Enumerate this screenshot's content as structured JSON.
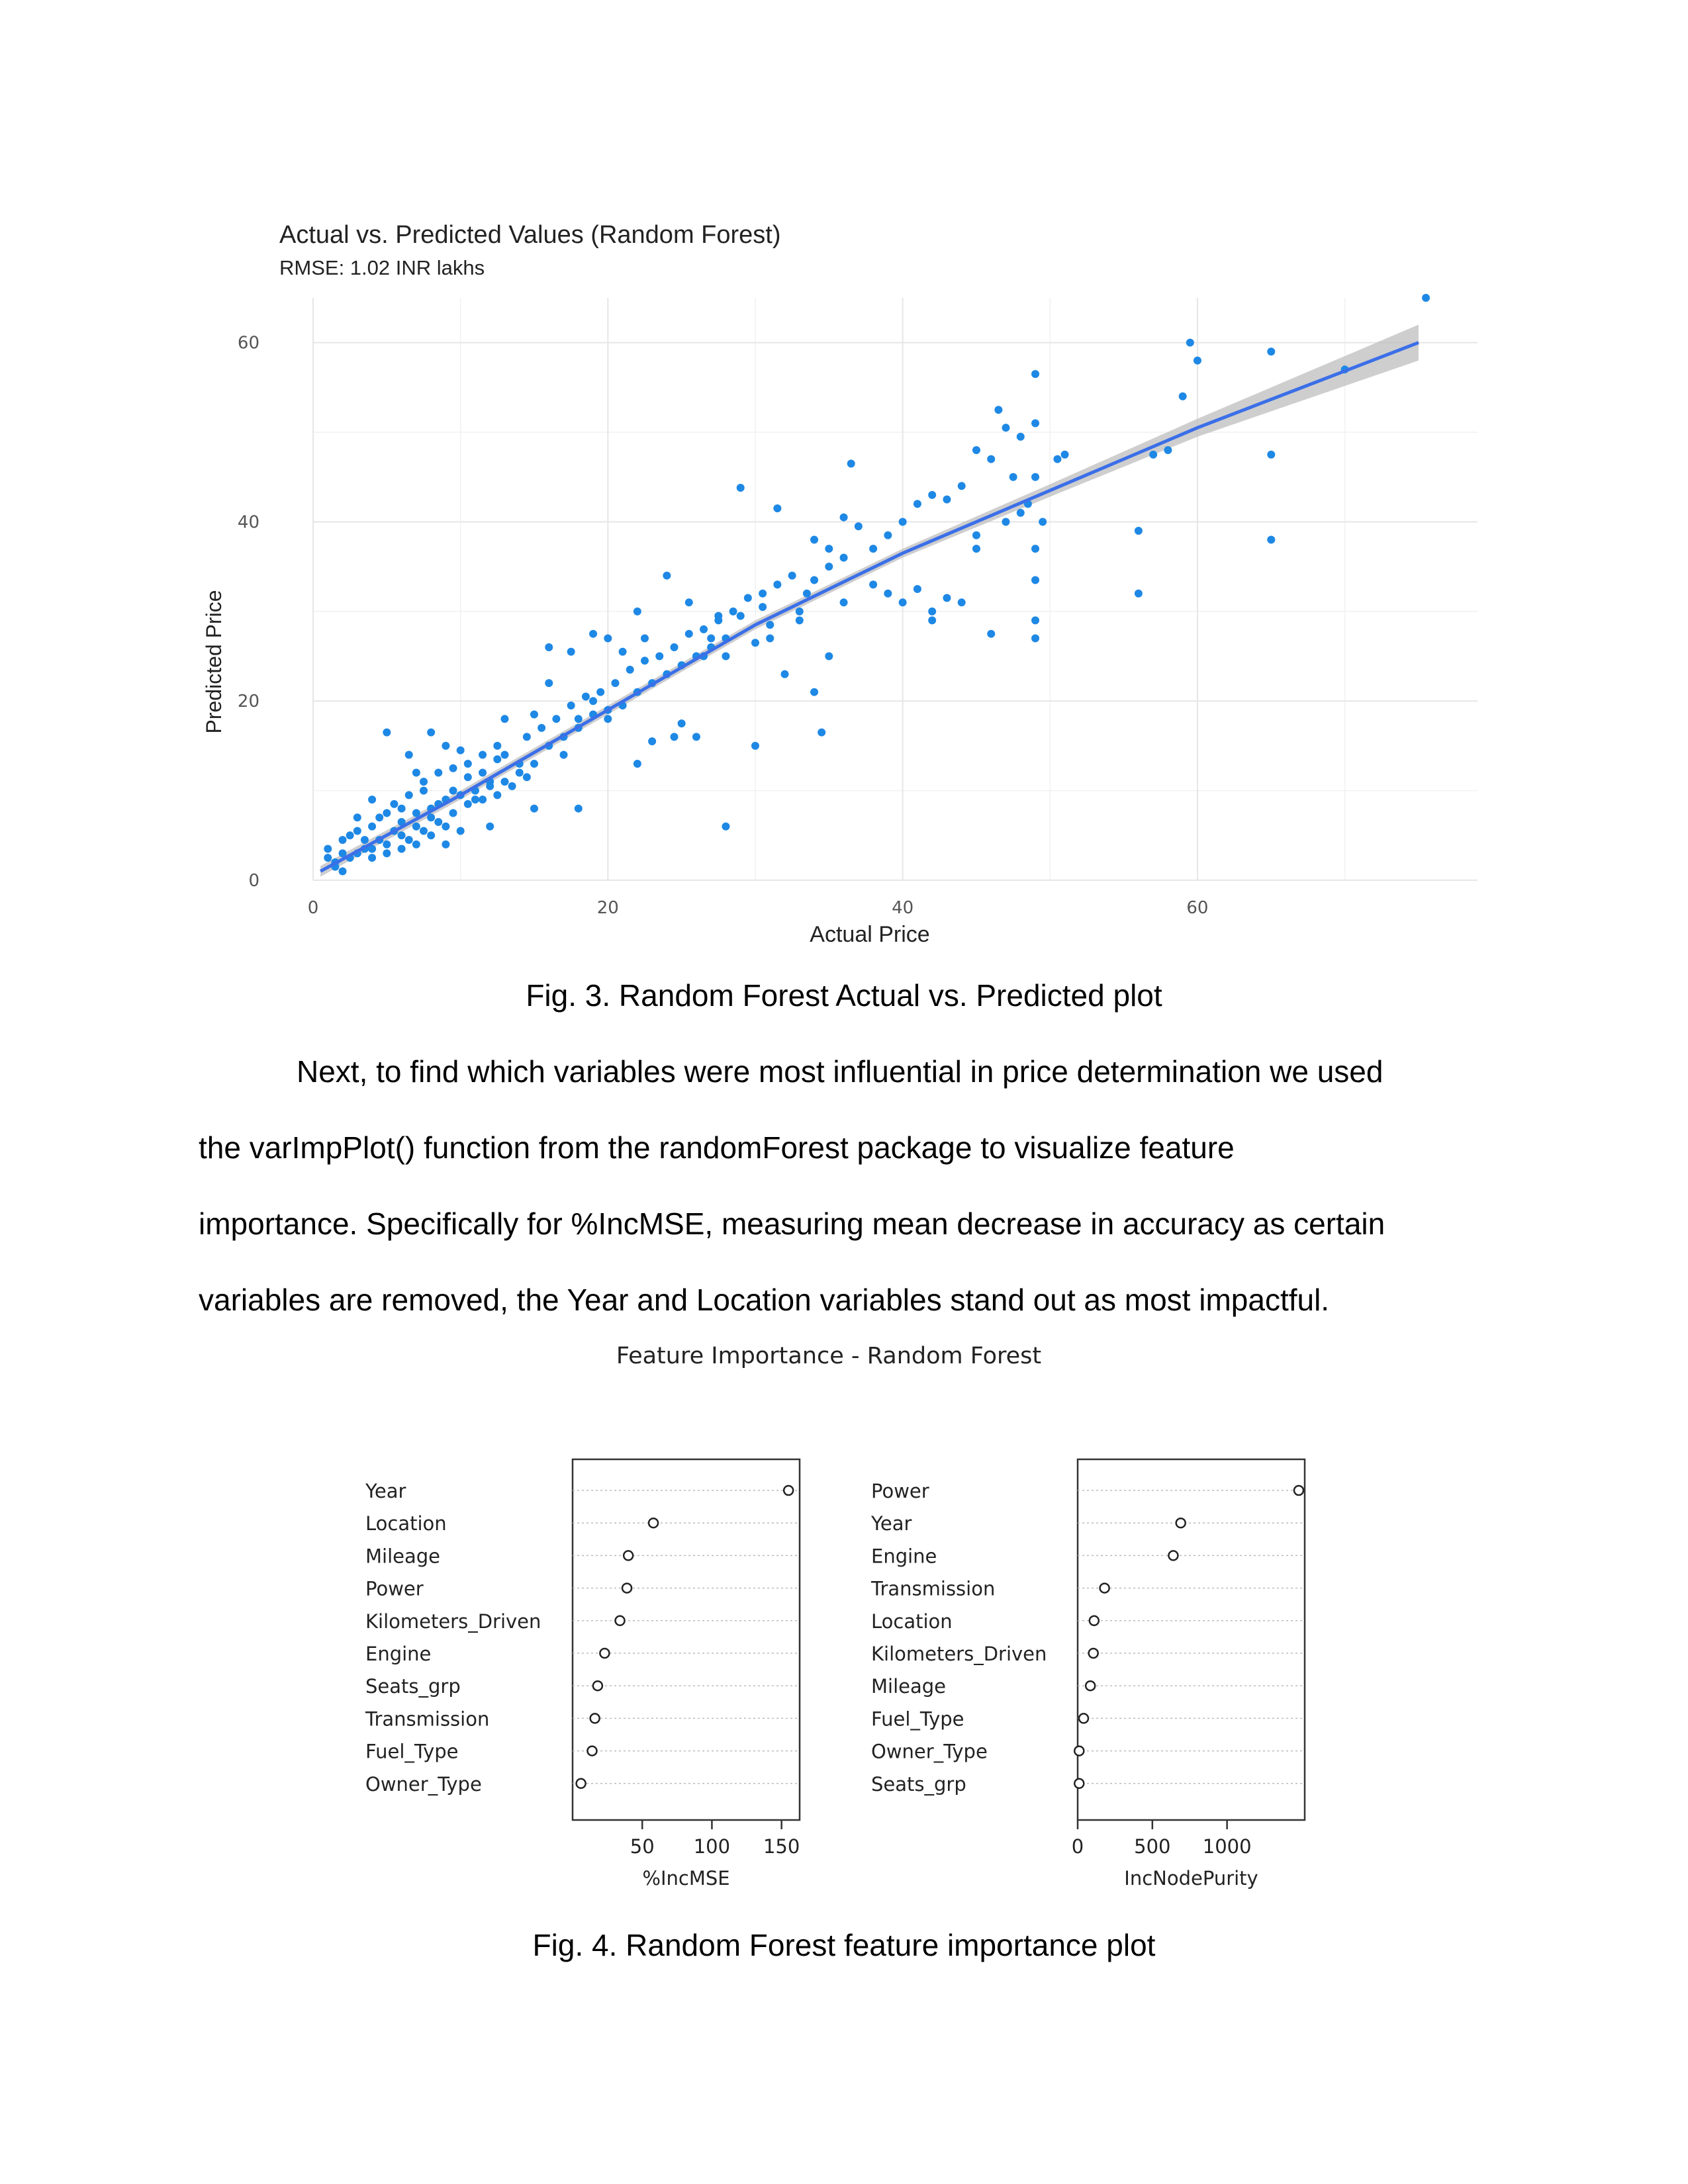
{
  "figure3": {
    "caption": "Fig. 3. Random Forest Actual vs. Predicted plot",
    "chart_data": {
      "type": "scatter",
      "title": "Actual vs. Predicted Values (Random Forest)",
      "subtitle": "RMSE: 1.02 INR lakhs",
      "xlabel": "Actual Price",
      "ylabel": "Predicted Price",
      "xlim": [
        0,
        79
      ],
      "ylim": [
        0,
        65
      ],
      "xticks": [
        0,
        20,
        40,
        60
      ],
      "yticks": [
        0,
        20,
        40,
        60
      ],
      "grid": true,
      "point_color": "#1E88E5",
      "line_color": "#3B6FE8",
      "band_color": "#BDBDBD",
      "points": [
        [
          29.0,
          43.8
        ],
        [
          31.5,
          41.5
        ],
        [
          28.0,
          6.0
        ],
        [
          30.0,
          15.0
        ],
        [
          31.0,
          27.0
        ],
        [
          32.0,
          23.0
        ],
        [
          33.0,
          30.0
        ],
        [
          34.0,
          21.0
        ],
        [
          35.0,
          25.0
        ],
        [
          36.0,
          31.0
        ],
        [
          34.5,
          16.5
        ],
        [
          36.5,
          46.5
        ],
        [
          36.0,
          40.5
        ],
        [
          38.0,
          33.0
        ],
        [
          39.0,
          32.0
        ],
        [
          40.0,
          31.0
        ],
        [
          41.0,
          32.5
        ],
        [
          42.0,
          30.0
        ],
        [
          43.0,
          31.5
        ],
        [
          42.0,
          29.0
        ],
        [
          44.0,
          31.0
        ],
        [
          45.0,
          37.0
        ],
        [
          45.0,
          38.5
        ],
        [
          47.0,
          40.0
        ],
        [
          48.0,
          41.0
        ],
        [
          46.0,
          27.5
        ],
        [
          49.0,
          33.5
        ],
        [
          49.0,
          27.0
        ],
        [
          49.0,
          29.0
        ],
        [
          49.0,
          37.0
        ],
        [
          49.5,
          40.0
        ],
        [
          44.0,
          44.0
        ],
        [
          45.0,
          48.0
        ],
        [
          46.0,
          47.0
        ],
        [
          46.5,
          52.5
        ],
        [
          47.0,
          50.5
        ],
        [
          48.0,
          49.5
        ],
        [
          49.0,
          56.5
        ],
        [
          49.0,
          51.0
        ],
        [
          49.0,
          45.0
        ],
        [
          50.5,
          47.0
        ],
        [
          51.0,
          47.5
        ],
        [
          56.0,
          39.0
        ],
        [
          56.0,
          32.0
        ],
        [
          57.0,
          47.5
        ],
        [
          58.0,
          48.0
        ],
        [
          59.0,
          54.0
        ],
        [
          59.5,
          60.0
        ],
        [
          60.0,
          58.0
        ],
        [
          65.0,
          59.0
        ],
        [
          65.0,
          47.5
        ],
        [
          65.0,
          38.0
        ],
        [
          70.0,
          57.0
        ],
        [
          75.5,
          65.0
        ],
        [
          35.0,
          35.0
        ],
        [
          33.5,
          32.0
        ],
        [
          30.5,
          30.5
        ],
        [
          29.0,
          29.5
        ],
        [
          27.5,
          29.5
        ],
        [
          26.5,
          25.0
        ],
        [
          27.0,
          27.0
        ],
        [
          25.5,
          31.0
        ],
        [
          22.0,
          30.0
        ],
        [
          24.0,
          34.0
        ],
        [
          22.5,
          27.0
        ],
        [
          19.0,
          27.5
        ],
        [
          17.5,
          25.5
        ],
        [
          16.0,
          22.0
        ],
        [
          15.0,
          18.5
        ],
        [
          18.0,
          8.0
        ],
        [
          15.0,
          8.0
        ],
        [
          16.0,
          26.0
        ],
        [
          20.0,
          27.0
        ],
        [
          21.0,
          25.5
        ],
        [
          23.0,
          15.5
        ],
        [
          24.5,
          16.0
        ],
        [
          25.0,
          17.5
        ],
        [
          26.0,
          16.0
        ],
        [
          22.0,
          13.0
        ],
        [
          20.0,
          18.0
        ],
        [
          19.0,
          20.0
        ],
        [
          18.0,
          17.0
        ],
        [
          17.0,
          14.0
        ],
        [
          14.0,
          13.0
        ],
        [
          13.0,
          18.0
        ],
        [
          12.0,
          11.0
        ],
        [
          11.0,
          9.0
        ],
        [
          10.0,
          14.5
        ],
        [
          9.0,
          15.0
        ],
        [
          8.0,
          16.5
        ],
        [
          5.0,
          16.5
        ],
        [
          6.5,
          14.0
        ],
        [
          7.0,
          12.0
        ],
        [
          8.0,
          7.0
        ],
        [
          9.0,
          4.0
        ],
        [
          10.0,
          5.5
        ],
        [
          12.0,
          6.0
        ],
        [
          4.0,
          9.0
        ],
        [
          3.0,
          7.0
        ],
        [
          2.5,
          5.0
        ],
        [
          1.0,
          3.5
        ],
        [
          1.5,
          2.0
        ],
        [
          2.0,
          1.0
        ],
        [
          3.0,
          3.0
        ],
        [
          4.0,
          2.5
        ],
        [
          5.0,
          4.0
        ],
        [
          6.0,
          5.0
        ],
        [
          7.0,
          6.0
        ],
        [
          6.0,
          8.0
        ],
        [
          5.0,
          7.5
        ],
        [
          4.0,
          6.0
        ],
        [
          3.5,
          4.5
        ],
        [
          2.0,
          3.0
        ],
        [
          7.5,
          10.0
        ],
        [
          8.5,
          8.5
        ],
        [
          9.5,
          10.0
        ],
        [
          10.5,
          11.5
        ],
        [
          11.5,
          12.0
        ],
        [
          12.5,
          13.5
        ],
        [
          13.0,
          14.0
        ],
        [
          14.5,
          16.0
        ],
        [
          15.5,
          17.0
        ],
        [
          16.5,
          18.0
        ],
        [
          17.5,
          19.5
        ],
        [
          18.5,
          20.5
        ],
        [
          19.5,
          21.0
        ],
        [
          20.5,
          22.0
        ],
        [
          21.5,
          23.5
        ],
        [
          22.5,
          24.5
        ],
        [
          23.5,
          25.0
        ],
        [
          24.5,
          26.0
        ],
        [
          25.5,
          27.5
        ],
        [
          26.5,
          28.0
        ],
        [
          27.5,
          29.0
        ],
        [
          28.5,
          30.0
        ],
        [
          29.5,
          31.5
        ],
        [
          30.5,
          32.0
        ],
        [
          31.5,
          33.0
        ],
        [
          32.5,
          34.0
        ],
        [
          20.0,
          19.0
        ],
        [
          21.0,
          19.5
        ],
        [
          22.0,
          21.0
        ],
        [
          23.0,
          22.0
        ],
        [
          24.0,
          23.0
        ],
        [
          25.0,
          24.0
        ],
        [
          26.0,
          25.0
        ],
        [
          27.0,
          26.0
        ],
        [
          28.0,
          27.0
        ],
        [
          11.0,
          10.0
        ],
        [
          12.0,
          10.5
        ],
        [
          13.0,
          11.0
        ],
        [
          14.0,
          12.0
        ],
        [
          15.0,
          13.0
        ],
        [
          16.0,
          15.0
        ],
        [
          17.0,
          16.0
        ],
        [
          18.0,
          18.0
        ],
        [
          19.0,
          18.5
        ],
        [
          6.0,
          6.5
        ],
        [
          7.0,
          7.5
        ],
        [
          8.0,
          8.0
        ],
        [
          9.0,
          9.0
        ],
        [
          10.0,
          9.5
        ],
        [
          5.5,
          5.5
        ],
        [
          4.5,
          4.5
        ],
        [
          3.5,
          3.5
        ],
        [
          2.5,
          2.5
        ],
        [
          1.5,
          1.5
        ],
        [
          6.5,
          4.5
        ],
        [
          7.5,
          5.5
        ],
        [
          8.5,
          6.5
        ],
        [
          9.5,
          7.5
        ],
        [
          10.5,
          8.5
        ],
        [
          11.5,
          9.0
        ],
        [
          12.5,
          9.5
        ],
        [
          13.5,
          10.5
        ],
        [
          14.5,
          11.5
        ],
        [
          4.5,
          7.0
        ],
        [
          5.5,
          8.5
        ],
        [
          6.5,
          9.5
        ],
        [
          7.5,
          11.0
        ],
        [
          8.5,
          12.0
        ],
        [
          9.5,
          12.5
        ],
        [
          10.5,
          13.0
        ],
        [
          11.5,
          14.0
        ],
        [
          12.5,
          15.0
        ],
        [
          3.0,
          5.5
        ],
        [
          2.0,
          4.5
        ],
        [
          1.0,
          2.5
        ],
        [
          4.0,
          3.5
        ],
        [
          5.0,
          3.0
        ],
        [
          6.0,
          3.5
        ],
        [
          7.0,
          4.0
        ],
        [
          8.0,
          5.0
        ],
        [
          9.0,
          6.0
        ],
        [
          33.0,
          29.0
        ],
        [
          31.0,
          28.5
        ],
        [
          30.0,
          26.5
        ],
        [
          28.0,
          25.0
        ],
        [
          34.0,
          33.5
        ],
        [
          37.0,
          39.5
        ],
        [
          38.0,
          37.0
        ],
        [
          39.0,
          38.5
        ],
        [
          40.0,
          40.0
        ],
        [
          41.0,
          42.0
        ],
        [
          42.0,
          43.0
        ],
        [
          43.0,
          42.5
        ],
        [
          47.5,
          45.0
        ],
        [
          48.5,
          42.0
        ],
        [
          36.0,
          36.0
        ],
        [
          35.0,
          37.0
        ],
        [
          34.0,
          38.0
        ]
      ],
      "fit_line": [
        [
          0.5,
          1.0
        ],
        [
          10.0,
          9.5
        ],
        [
          20.0,
          19.0
        ],
        [
          30.0,
          28.5
        ],
        [
          40.0,
          36.5
        ],
        [
          50.0,
          43.5
        ],
        [
          60.0,
          50.5
        ],
        [
          75.0,
          60.0
        ]
      ],
      "band": [
        [
          0.5,
          1.6,
          0.4
        ],
        [
          10.0,
          10.0,
          9.0
        ],
        [
          20.0,
          19.5,
          18.5
        ],
        [
          30.0,
          29.0,
          28.0
        ],
        [
          40.0,
          37.0,
          36.0
        ],
        [
          50.0,
          44.2,
          42.8
        ],
        [
          60.0,
          51.5,
          49.5
        ],
        [
          75.0,
          62.0,
          58.0
        ]
      ]
    }
  },
  "paragraph": {
    "lines": [
      "Next, to find which variables were most influential in price determination we used",
      "the varImpPlot() function from the randomForest package to visualize feature",
      "importance. Specifically for %IncMSE, measuring mean decrease in accuracy as certain",
      "variables are removed, the Year and Location variables stand out as most impactful."
    ]
  },
  "figure4": {
    "caption": "Fig. 4. Random Forest feature importance plot",
    "title": "Feature Importance - Random Forest",
    "chart_data": [
      {
        "type": "scatter",
        "xlabel": "%IncMSE",
        "xticks": [
          50,
          100,
          150
        ],
        "xlim": [
          0,
          163
        ],
        "features": [
          "Year",
          "Location",
          "Mileage",
          "Power",
          "Kilometers_Driven",
          "Engine",
          "Seats_grp",
          "Transmission",
          "Fuel_Type",
          "Owner_Type"
        ],
        "values": [
          155,
          58,
          40,
          39,
          34,
          23,
          18,
          16,
          14,
          6
        ]
      },
      {
        "type": "scatter",
        "xlabel": "IncNodePurity",
        "xticks": [
          0,
          500,
          1000
        ],
        "xlim": [
          0,
          1520
        ],
        "features": [
          "Power",
          "Year",
          "Engine",
          "Transmission",
          "Location",
          "Kilometers_Driven",
          "Mileage",
          "Fuel_Type",
          "Owner_Type",
          "Seats_grp"
        ],
        "values": [
          1480,
          690,
          640,
          180,
          110,
          105,
          85,
          40,
          10,
          10
        ]
      }
    ]
  }
}
